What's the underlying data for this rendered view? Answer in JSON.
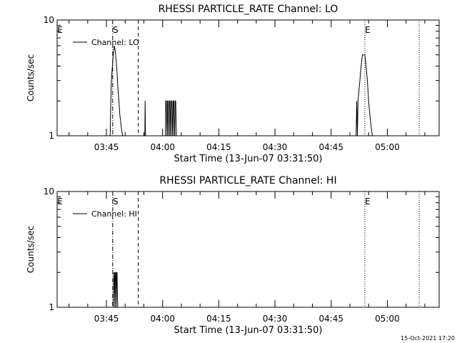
{
  "chart_data": [
    {
      "type": "line",
      "title": "RHESSI PARTICLE_RATE Channel: LO",
      "xlabel": "Start Time (13-Jun-07 03:31:50)",
      "ylabel": "Counts/sec",
      "yscale": "log",
      "ylim": [
        1,
        10
      ],
      "xlim": [
        "03:31:50",
        "05:13:50"
      ],
      "x_ticks": [
        "03:45",
        "04:00",
        "04:15",
        "04:30",
        "04:45",
        "05:00"
      ],
      "y_ticks": [
        "1",
        "10"
      ],
      "legend": "Channel: LO",
      "legend_position": "top-left",
      "markers": [
        {
          "label": "E",
          "time": "03:31:50",
          "style": "dotted"
        },
        {
          "label": "S",
          "time": "03:46:40",
          "style": "dashdot"
        },
        {
          "label": "",
          "time": "03:53:30",
          "style": "dashed"
        },
        {
          "label": "E",
          "time": "04:54:00",
          "style": "dotted"
        },
        {
          "label": "",
          "time": "05:08:30",
          "style": "dotted"
        }
      ],
      "series": [
        {
          "name": "Channel: LO",
          "x": [
            "03:46:00",
            "03:46:10",
            "03:46:20",
            "03:46:35",
            "03:46:50",
            "03:47:05",
            "03:47:20",
            "03:47:35",
            "03:47:50",
            "03:48:05",
            "03:48:20",
            "03:48:35",
            "03:48:50",
            "03:49:05",
            "03:49:20",
            "03:49:35",
            "03:49:50",
            "03:55:15",
            "03:55:20",
            "03:55:25",
            "03:55:30",
            "03:55:35",
            "04:00:45",
            "04:00:50",
            "04:01:00",
            "04:01:10",
            "04:01:15",
            "04:01:20",
            "04:01:30",
            "04:01:40",
            "04:01:45",
            "04:01:50",
            "04:02:00",
            "04:02:10",
            "04:02:15",
            "04:02:20",
            "04:02:30",
            "04:02:40",
            "04:02:45",
            "04:02:50",
            "04:03:00",
            "04:03:10",
            "04:03:15",
            "04:03:20",
            "04:03:30",
            "04:03:40",
            "04:03:45",
            "04:03:50",
            "04:51:40",
            "04:51:50",
            "04:52:00",
            "04:52:10",
            "04:52:40",
            "04:53:00",
            "04:53:20",
            "04:53:40",
            "04:54:00",
            "04:54:20",
            "04:54:40",
            "04:55:00",
            "04:55:20",
            "04:55:40",
            "04:56:00",
            "04:56:20",
            "04:56:40",
            "04:57:00"
          ],
          "values": [
            1,
            2,
            3,
            4,
            5,
            6,
            5.5,
            4.5,
            3.5,
            2.5,
            2,
            1.5,
            1.3,
            1.1,
            1,
            1,
            1,
            1,
            2,
            1,
            1,
            1,
            1,
            2,
            2,
            1,
            1,
            2,
            2,
            1,
            1,
            2,
            2,
            1,
            1,
            2,
            2,
            1,
            1,
            2,
            2,
            1,
            1,
            2,
            2,
            1,
            1,
            1,
            1,
            2,
            1,
            2,
            3,
            4,
            5,
            5,
            5,
            4,
            3,
            2,
            1.5,
            1.2,
            1,
            1,
            1,
            1
          ]
        }
      ]
    },
    {
      "type": "line",
      "title": "RHESSI PARTICLE_RATE Channel: HI",
      "xlabel": "Start Time (13-Jun-07 03:31:50)",
      "ylabel": "Counts/sec",
      "yscale": "log",
      "ylim": [
        1,
        10
      ],
      "xlim": [
        "03:31:50",
        "05:13:50"
      ],
      "x_ticks": [
        "03:45",
        "04:00",
        "04:15",
        "04:30",
        "04:45",
        "05:00"
      ],
      "y_ticks": [
        "1",
        "10"
      ],
      "legend": "Channel: HI",
      "legend_position": "top-left",
      "markers": [
        {
          "label": "E",
          "time": "03:31:50",
          "style": "dotted"
        },
        {
          "label": "S",
          "time": "03:46:40",
          "style": "dashdot"
        },
        {
          "label": "",
          "time": "03:53:30",
          "style": "dashed"
        },
        {
          "label": "E",
          "time": "04:54:00",
          "style": "dotted"
        },
        {
          "label": "",
          "time": "05:08:30",
          "style": "dotted"
        }
      ],
      "series": [
        {
          "name": "Channel: HI",
          "x": [
            "03:46:50",
            "03:47:00",
            "03:47:05",
            "03:47:15",
            "03:47:20",
            "03:47:30",
            "03:47:35",
            "03:47:45",
            "03:47:50",
            "03:48:00"
          ],
          "values": [
            1,
            2,
            2,
            1,
            2,
            2,
            1,
            2,
            2,
            1
          ]
        }
      ]
    }
  ],
  "footer": {
    "timestamp": "15-Oct-2021 17:20"
  }
}
